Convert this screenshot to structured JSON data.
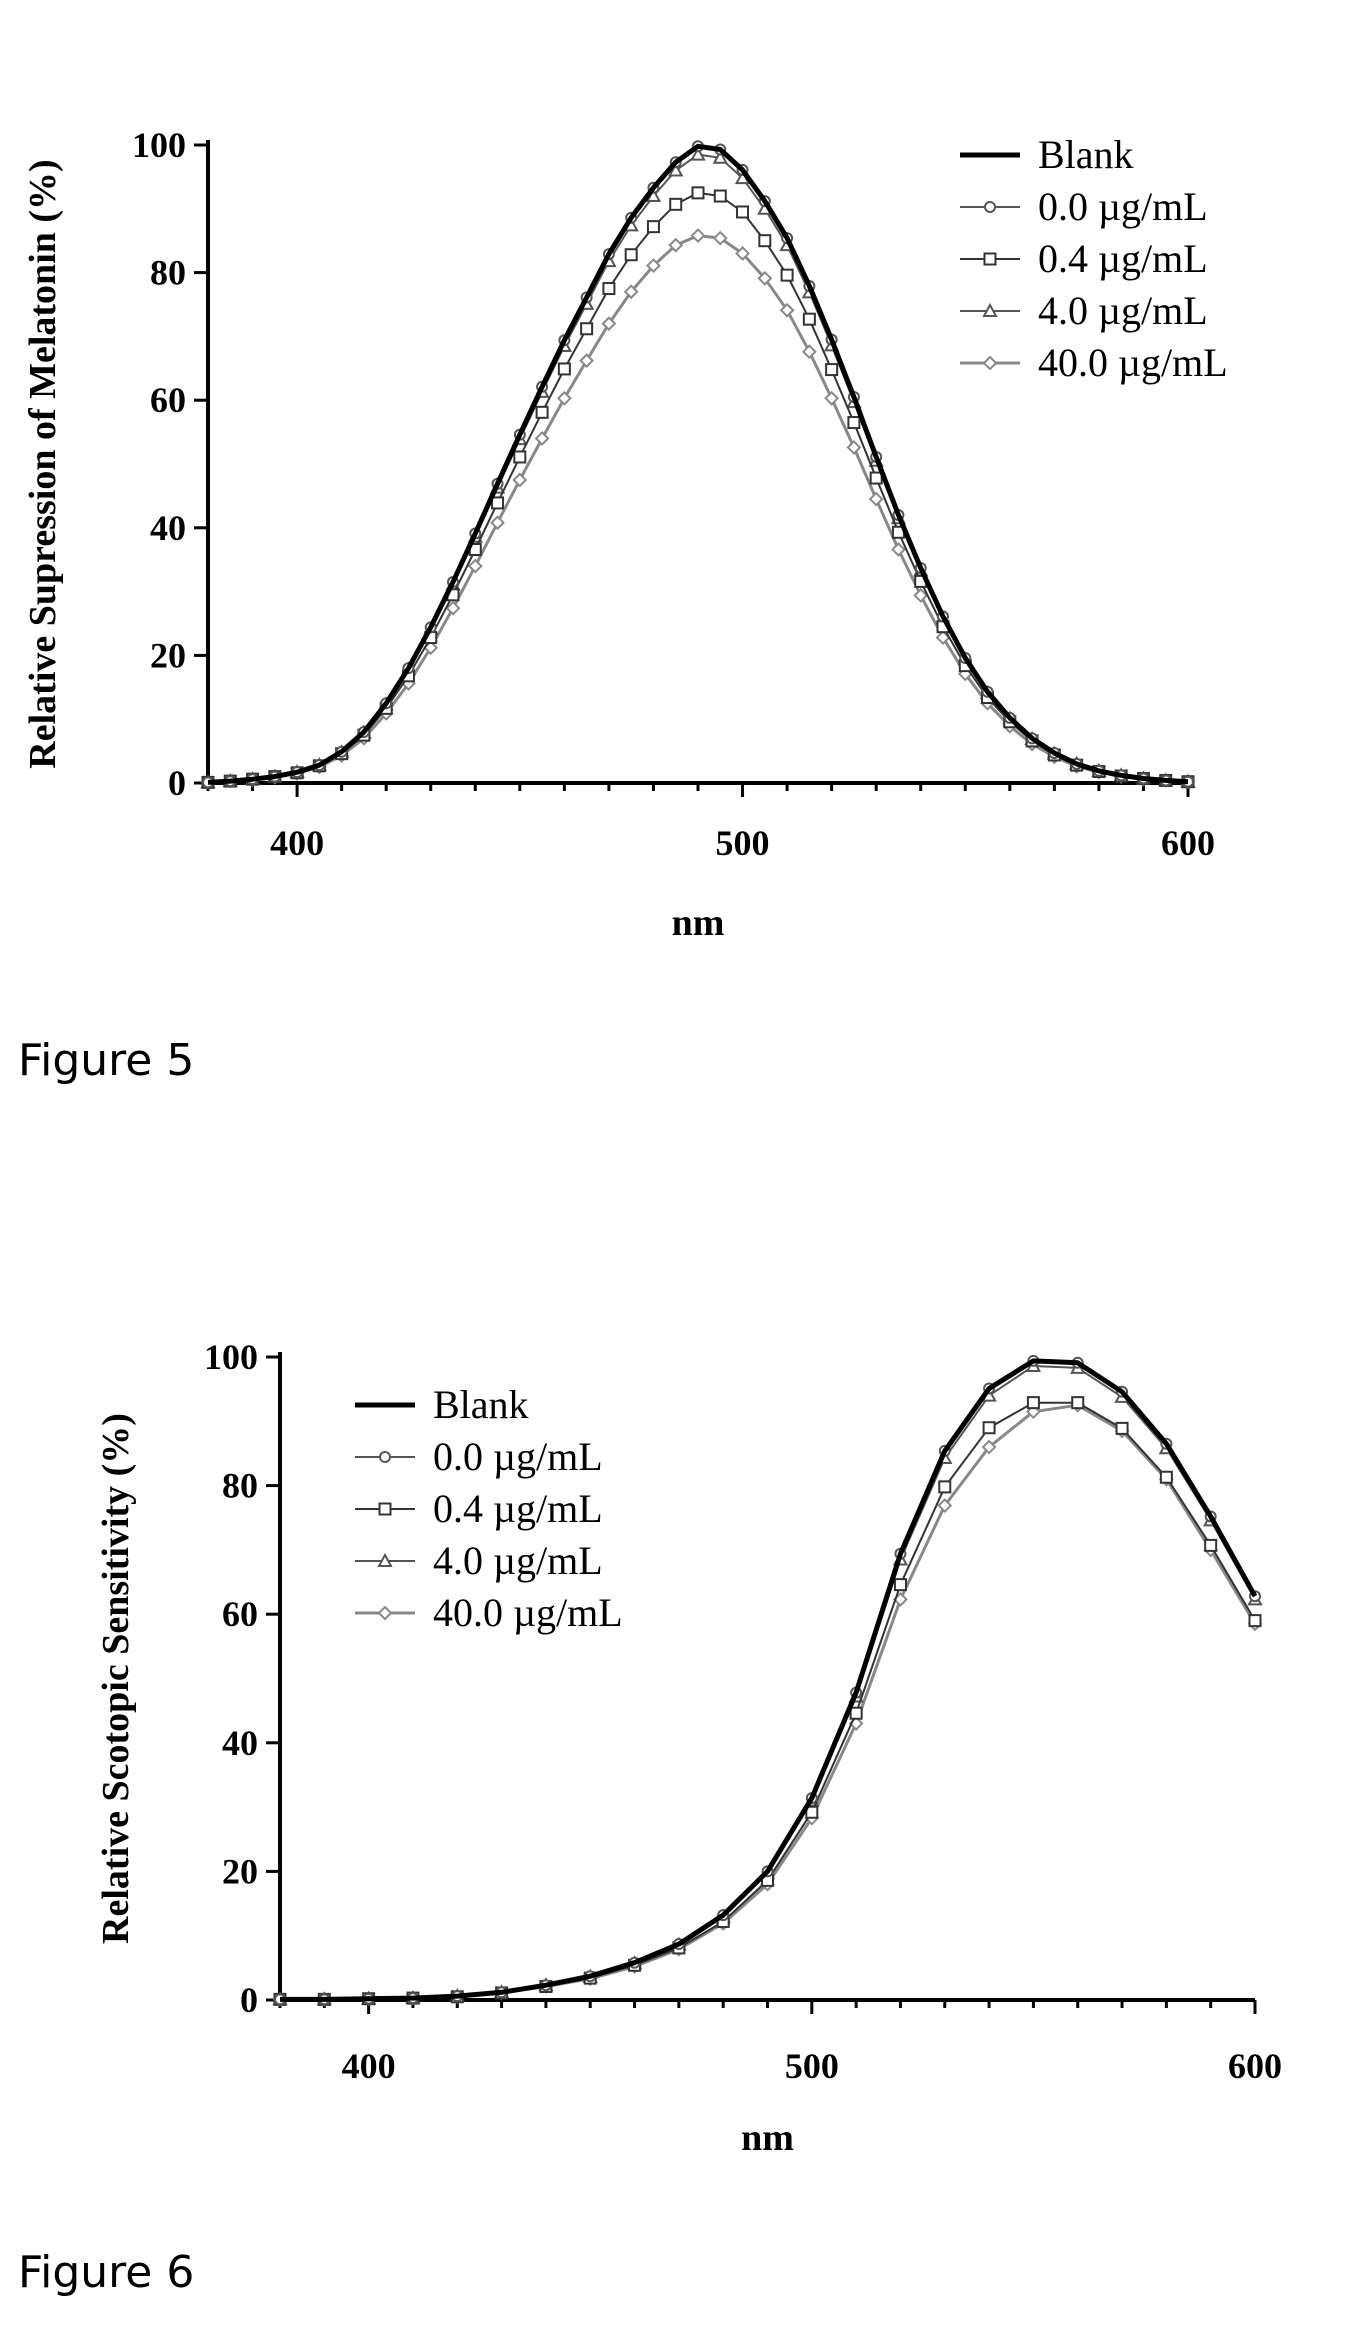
{
  "figures": [
    {
      "caption": "Figure 5"
    },
    {
      "caption": "Figure 6"
    }
  ],
  "chart_data": [
    {
      "type": "line",
      "title": "",
      "xlabel": "nm",
      "ylabel": "Relative Supression of Melatonin (%)",
      "xlim": [
        380,
        600
      ],
      "ylim": [
        0,
        100
      ],
      "xticks": [
        "400",
        "500",
        "600"
      ],
      "yticks": [
        "0",
        "20",
        "40",
        "60",
        "80",
        "100"
      ],
      "grid": false,
      "legend_position": "top-right",
      "x": [
        380,
        385,
        390,
        395,
        400,
        405,
        410,
        415,
        420,
        425,
        430,
        435,
        440,
        445,
        450,
        455,
        460,
        465,
        470,
        475,
        480,
        485,
        490,
        495,
        500,
        505,
        510,
        515,
        520,
        525,
        530,
        535,
        540,
        545,
        550,
        555,
        560,
        565,
        570,
        575,
        580,
        585,
        590,
        595,
        600
      ],
      "series": [
        {
          "name": "Blank",
          "marker": "none",
          "values": [
            0.1,
            0.3,
            0.6,
            1.0,
            1.7,
            2.8,
            4.9,
            8.0,
            12.5,
            18.0,
            24.4,
            31.5,
            39.1,
            46.9,
            54.6,
            62.1,
            69.4,
            76.1,
            82.9,
            88.6,
            93.3,
            97.3,
            99.8,
            99.3,
            96.1,
            91.2,
            85.4,
            77.9,
            69.5,
            60.5,
            51.1,
            42.0,
            33.7,
            26.1,
            19.6,
            14.3,
            10.2,
            7.0,
            4.7,
            3.0,
            1.9,
            1.2,
            0.7,
            0.4,
            0.2
          ]
        },
        {
          "name": "0.0 µg/mL",
          "marker": "circle",
          "values": [
            0.1,
            0.3,
            0.6,
            1.0,
            1.7,
            2.8,
            4.9,
            8.0,
            12.5,
            18.0,
            24.4,
            31.5,
            39.1,
            46.9,
            54.6,
            62.1,
            69.4,
            76.1,
            82.9,
            88.6,
            93.3,
            97.3,
            99.8,
            99.3,
            96.1,
            91.2,
            85.4,
            77.9,
            69.5,
            60.5,
            51.1,
            42.0,
            33.7,
            26.1,
            19.6,
            14.3,
            10.2,
            7.0,
            4.7,
            3.0,
            1.9,
            1.2,
            0.7,
            0.4,
            0.2
          ]
        },
        {
          "name": "0.4 µg/mL",
          "marker": "square",
          "values": [
            0.1,
            0.3,
            0.6,
            1.0,
            1.6,
            2.7,
            4.6,
            7.5,
            11.7,
            16.8,
            22.8,
            29.5,
            36.6,
            43.9,
            51.1,
            58.1,
            64.9,
            71.2,
            77.5,
            82.8,
            87.2,
            90.7,
            92.5,
            92.0,
            89.5,
            85.0,
            79.6,
            72.7,
            64.8,
            56.5,
            47.8,
            39.3,
            31.6,
            24.5,
            18.4,
            13.4,
            9.6,
            6.6,
            4.4,
            2.8,
            1.8,
            1.1,
            0.7,
            0.4,
            0.2
          ]
        },
        {
          "name": "4.0 µg/mL",
          "marker": "triangle",
          "values": [
            0.1,
            0.3,
            0.6,
            1.0,
            1.7,
            2.8,
            4.8,
            7.9,
            12.3,
            17.8,
            24.1,
            31.1,
            38.6,
            46.3,
            53.9,
            61.3,
            68.5,
            75.1,
            81.8,
            87.4,
            92.0,
            96.0,
            98.5,
            98.0,
            94.8,
            90.0,
            84.3,
            76.9,
            68.6,
            59.7,
            50.5,
            41.5,
            33.3,
            25.8,
            19.4,
            14.1,
            10.1,
            6.9,
            4.6,
            3.0,
            1.9,
            1.2,
            0.7,
            0.4,
            0.2
          ]
        },
        {
          "name": "40.0 µg/mL",
          "marker": "diamond",
          "values": [
            0.1,
            0.3,
            0.5,
            0.9,
            1.5,
            2.5,
            4.3,
            7.0,
            10.9,
            15.6,
            21.2,
            27.4,
            34.0,
            40.8,
            47.5,
            54.0,
            60.3,
            66.2,
            72.0,
            77.0,
            81.1,
            84.3,
            85.8,
            85.4,
            83.0,
            79.1,
            74.1,
            67.6,
            60.3,
            52.6,
            44.5,
            36.6,
            29.4,
            22.8,
            17.1,
            12.5,
            8.9,
            6.1,
            4.1,
            2.6,
            1.7,
            1.0,
            0.6,
            0.4,
            0.2
          ]
        }
      ]
    },
    {
      "type": "line",
      "title": "",
      "xlabel": "nm",
      "ylabel": "Relative Scotopic Sensitivity (%)",
      "xlim": [
        380,
        600
      ],
      "ylim": [
        0,
        100
      ],
      "xticks": [
        "400",
        "500",
        "600"
      ],
      "yticks": [
        "0",
        "20",
        "40",
        "60",
        "80",
        "100"
      ],
      "grid": false,
      "legend_position": "top-left",
      "x": [
        380,
        390,
        400,
        410,
        420,
        430,
        440,
        450,
        460,
        470,
        480,
        490,
        500,
        510,
        520,
        530,
        540,
        550,
        560,
        570,
        580,
        590,
        600
      ],
      "series": [
        {
          "name": "Blank",
          "marker": "none",
          "values": [
            0.1,
            0.1,
            0.2,
            0.3,
            0.6,
            1.2,
            2.3,
            3.7,
            5.8,
            8.7,
            13.2,
            20.0,
            31.4,
            47.8,
            69.4,
            85.4,
            95.1,
            99.4,
            99.1,
            94.6,
            86.5,
            75.2,
            62.8
          ]
        },
        {
          "name": "0.0 µg/mL",
          "marker": "circle",
          "values": [
            0.1,
            0.1,
            0.2,
            0.3,
            0.6,
            1.2,
            2.3,
            3.7,
            5.8,
            8.7,
            13.2,
            20.0,
            31.4,
            47.8,
            69.4,
            85.4,
            95.1,
            99.4,
            99.1,
            94.6,
            86.5,
            75.2,
            62.8
          ]
        },
        {
          "name": "0.4 µg/mL",
          "marker": "square",
          "values": [
            0.1,
            0.1,
            0.2,
            0.3,
            0.5,
            1.1,
            2.1,
            3.4,
            5.4,
            8.1,
            12.2,
            18.6,
            29.2,
            44.6,
            64.6,
            79.8,
            89.0,
            92.9,
            92.9,
            88.9,
            81.3,
            70.7,
            59.0
          ]
        },
        {
          "name": "4.0 µg/mL",
          "marker": "triangle",
          "values": [
            0.1,
            0.1,
            0.2,
            0.3,
            0.6,
            1.2,
            2.3,
            3.6,
            5.7,
            8.6,
            13.0,
            19.7,
            31.0,
            47.2,
            68.5,
            84.3,
            94.0,
            98.6,
            98.3,
            93.8,
            85.8,
            74.6,
            62.3
          ]
        },
        {
          "name": "40.0 µg/mL",
          "marker": "diamond",
          "values": [
            0.1,
            0.1,
            0.2,
            0.3,
            0.5,
            1.1,
            2.1,
            3.3,
            5.2,
            7.9,
            11.9,
            18.0,
            28.3,
            43.0,
            62.3,
            76.9,
            86.0,
            91.5,
            92.5,
            88.5,
            81.0,
            70.0,
            58.5
          ]
        }
      ]
    }
  ]
}
